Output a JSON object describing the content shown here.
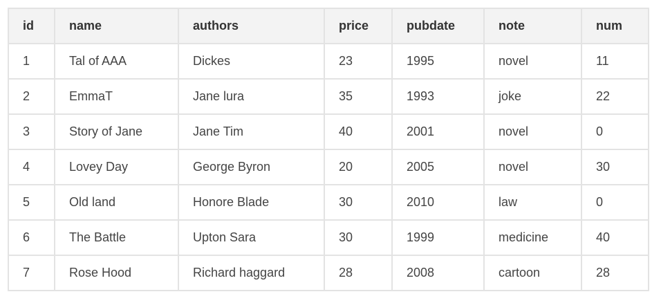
{
  "table": {
    "columns": [
      "id",
      "name",
      "authors",
      "price",
      "pubdate",
      "note",
      "num"
    ],
    "rows": [
      [
        "1",
        "Tal of AAA",
        "Dickes",
        "23",
        "1995",
        "novel",
        "11"
      ],
      [
        "2",
        "EmmaT",
        "Jane lura",
        "35",
        "1993",
        "joke",
        "22"
      ],
      [
        "3",
        "Story of Jane",
        "Jane Tim",
        "40",
        "2001",
        "novel",
        "0"
      ],
      [
        "4",
        "Lovey Day",
        "George Byron",
        "20",
        "2005",
        "novel",
        "30"
      ],
      [
        "5",
        "Old land",
        "Honore Blade",
        "30",
        "2010",
        "law",
        "0"
      ],
      [
        "6",
        "The Battle",
        "Upton Sara",
        "30",
        "1999",
        "medicine",
        "40"
      ],
      [
        "7",
        "Rose Hood",
        "Richard haggard",
        "28",
        "2008",
        "cartoon",
        "28"
      ]
    ]
  }
}
